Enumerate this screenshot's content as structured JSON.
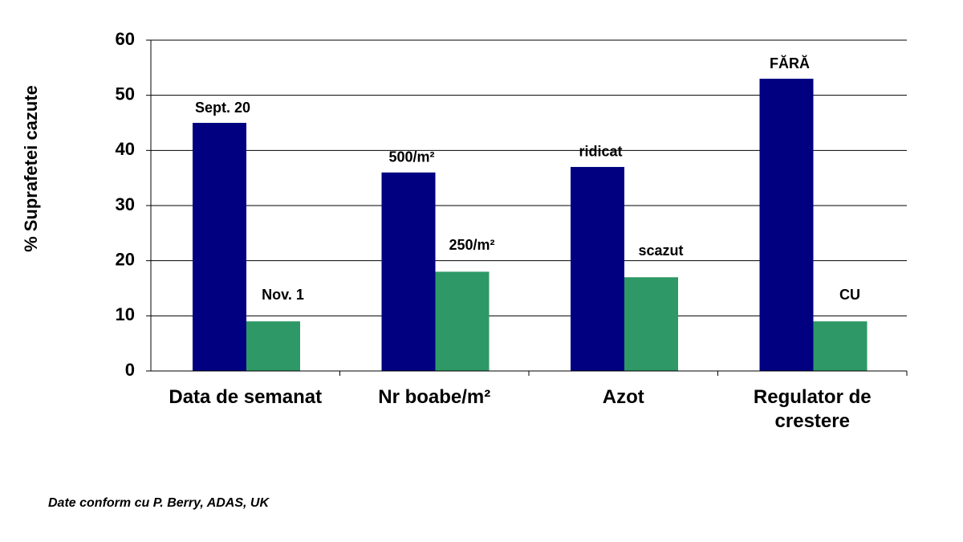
{
  "chart_data": {
    "type": "bar",
    "y_label": "% Suprafetei cazute",
    "categories": [
      "Data de semanat",
      "Nr boabe/m²",
      "Azot",
      "Regulator de crestere"
    ],
    "series": [
      {
        "color": "#000080",
        "values": [
          45,
          36,
          37,
          53
        ],
        "labels": [
          "Sept. 20",
          "500/m²",
          "ridicat",
          "FĂRĂ"
        ]
      },
      {
        "color": "#2e9966",
        "values": [
          9,
          18,
          17,
          9
        ],
        "labels": [
          "Nov. 1",
          "250/m²",
          "scazut",
          "CU"
        ]
      }
    ],
    "ylim": [
      0,
      60
    ],
    "yticks": [
      0,
      10,
      20,
      30,
      40,
      50,
      60
    ],
    "grid": true,
    "source": "Date conform cu P. Berry, ADAS, UK"
  }
}
